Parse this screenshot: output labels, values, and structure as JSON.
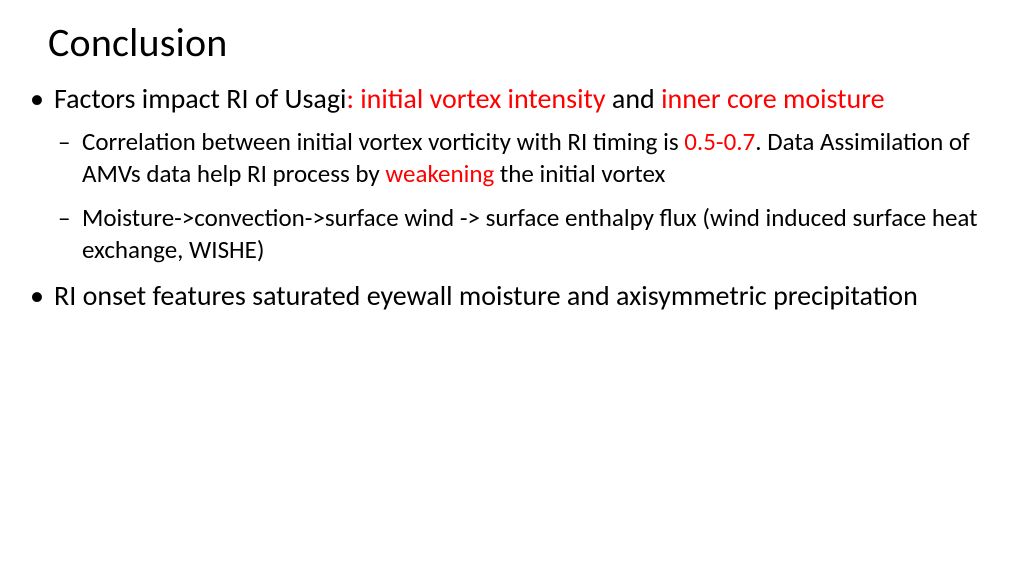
{
  "colors": {
    "text": "#000000",
    "highlight": "#ff0000",
    "background": "#ffffff"
  },
  "typography": {
    "title_fontsize": 40,
    "bullet1_fontsize": 28,
    "bullet2_fontsize": 25,
    "font_family": "Calibri"
  },
  "title": "Conclusion",
  "bullets": [
    {
      "parts": [
        {
          "t": "Factors impact RI of Usagi",
          "red": false
        },
        {
          "t": ": initial vortex intensity ",
          "red": true
        },
        {
          "t": "and ",
          "red": false
        },
        {
          "t": "inner core moisture",
          "red": true
        }
      ],
      "sub": [
        {
          "parts": [
            {
              "t": "Correlation between initial vortex vorticity with RI timing is ",
              "red": false
            },
            {
              "t": "0.5-0.7",
              "red": true
            },
            {
              "t": ". Data Assimilation of AMVs data help RI process by ",
              "red": false
            },
            {
              "t": "weakening ",
              "red": true
            },
            {
              "t": "the initial vortex",
              "red": false
            }
          ]
        },
        {
          "parts": [
            {
              "t": "Moisture->convection->surface wind -> surface enthalpy flux (wind induced surface heat exchange, WISHE)",
              "red": false
            }
          ]
        }
      ]
    },
    {
      "parts": [
        {
          "t": "RI onset features saturated eyewall moisture and axisymmetric precipitation",
          "red": false
        }
      ],
      "sub": []
    }
  ]
}
